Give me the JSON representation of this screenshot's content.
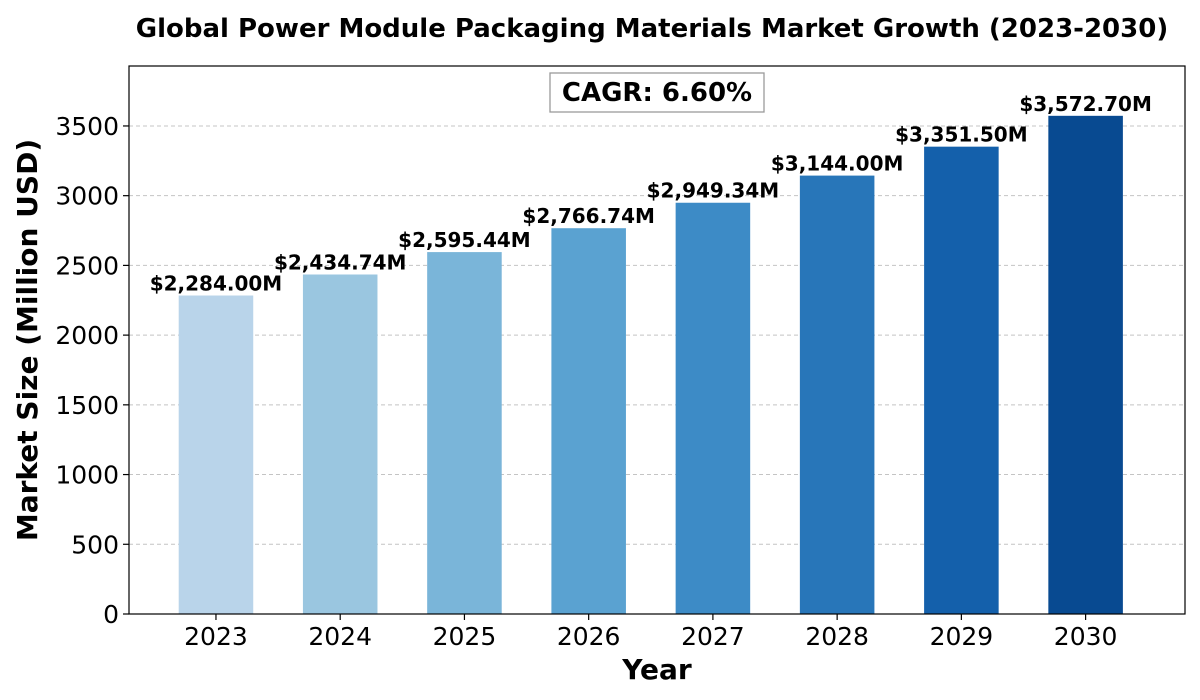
{
  "chart_data": {
    "type": "bar",
    "title": "Global Power Module Packaging Materials Market Growth (2023-2030)",
    "xlabel": "Year",
    "ylabel": "Market Size (Million USD)",
    "categories": [
      "2023",
      "2024",
      "2025",
      "2026",
      "2027",
      "2028",
      "2029",
      "2030"
    ],
    "values": [
      2284.0,
      2434.74,
      2595.44,
      2766.74,
      2949.34,
      3144.0,
      3351.5,
      3572.7
    ],
    "data_labels": [
      "$2,284.00M",
      "$2,434.74M",
      "$2,595.44M",
      "$2,766.74M",
      "$2,949.34M",
      "$3,144.00M",
      "$3,351.50M",
      "$3,572.70M"
    ],
    "bar_colors": [
      "#b9d4ea",
      "#9ac6e0",
      "#7ab5d9",
      "#5aa2d1",
      "#3d8bc6",
      "#2876b9",
      "#1460ab",
      "#084a91"
    ],
    "ylim": [
      0,
      3930
    ],
    "yticks": [
      0,
      500,
      1000,
      1500,
      2000,
      2500,
      3000,
      3500
    ],
    "ytick_labels": [
      "0",
      "500",
      "1000",
      "1500",
      "2000",
      "2500",
      "3000",
      "3500"
    ],
    "grid": "y",
    "annotation": "CAGR: 6.60%"
  }
}
